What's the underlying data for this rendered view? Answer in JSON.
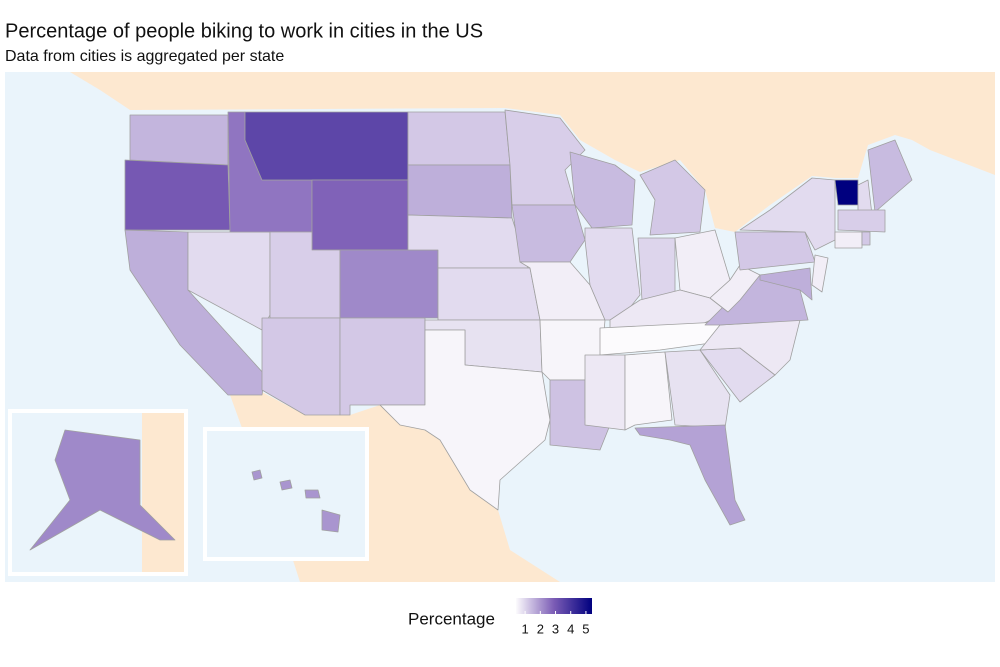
{
  "chart_data": {
    "type": "choropleth",
    "title": "Percentage of people biking to work in cities in the US",
    "subtitle": "Data from cities is aggregated per state",
    "legend_title": "Percentage",
    "values": [
      1.5,
      3.0,
      1.6,
      0.9,
      2.5,
      3.5,
      2.8,
      1.1,
      2.2,
      1.2,
      1.2,
      1.2,
      1.6,
      0.9,
      0.9,
      0.8,
      0.5,
      1.1,
      1.4,
      0.6,
      0.5,
      1.3,
      1.4,
      0.9,
      1.2,
      1.0,
      0.6,
      0.7,
      0.4,
      0.7,
      0.5,
      0.8,
      1.8,
      0.9,
      0.7,
      1.5,
      0.6,
      1.2,
      0.9,
      5.4,
      0.9,
      1.4,
      1.1,
      0.6,
      1.2,
      0.6,
      1.6,
      2.2,
      2.0
    ],
    "colors": [
      "#fcfbfd",
      "#7b5cb5",
      "#00007f"
    ],
    "clim": [
      0.4,
      5.4
    ],
    "legend_ticks": [
      1,
      2,
      3,
      4,
      5
    ]
  }
}
